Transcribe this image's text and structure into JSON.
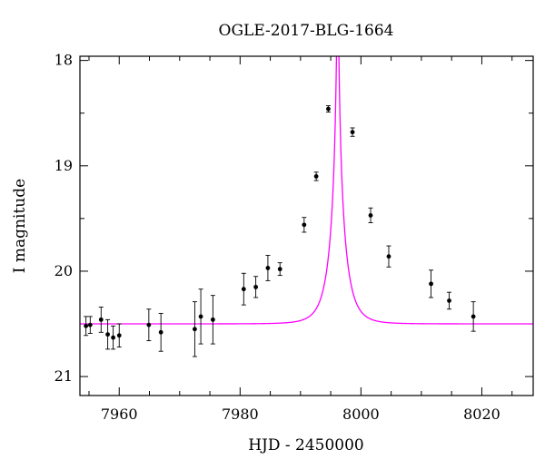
{
  "chart_data": {
    "type": "scatter",
    "title": "OGLE-2017-BLG-1664",
    "xlabel": "HJD - 2450000",
    "ylabel": "I magnitude",
    "xlim": [
      7953.5,
      8028.5
    ],
    "ylim": [
      21.18,
      17.96
    ],
    "y_inverted": true,
    "x_ticks": [
      7960,
      7980,
      8000,
      8020
    ],
    "x_tick_labels": [
      "7960",
      "7980",
      "8000",
      "8020"
    ],
    "y_ticks": [
      18,
      19,
      20,
      21
    ],
    "y_tick_labels": [
      "18",
      "19",
      "20",
      "21"
    ],
    "grid": false,
    "colors": {
      "points": "#000000",
      "model": "#ff00ff",
      "frame": "#000000"
    },
    "series": [
      {
        "kind": "points_with_errorbars",
        "x": [
          7954.5,
          7955.2,
          7957.0,
          7958.1,
          7959.0,
          7960.0,
          7964.9,
          7966.9,
          7972.5,
          7973.5,
          7975.5,
          7980.6,
          7982.6,
          7984.6,
          7986.6,
          7990.6,
          7992.6,
          7994.6,
          7998.6,
          8001.6,
          8004.6,
          8011.6,
          8014.6,
          8018.6
        ],
        "y": [
          20.52,
          20.51,
          20.46,
          20.6,
          20.63,
          20.61,
          20.51,
          20.58,
          20.55,
          20.43,
          20.46,
          20.17,
          20.15,
          19.97,
          19.98,
          19.56,
          19.1,
          18.46,
          18.68,
          19.47,
          19.86,
          20.12,
          20.28,
          20.43
        ],
        "yerr": [
          0.09,
          0.08,
          0.12,
          0.14,
          0.11,
          0.11,
          0.15,
          0.18,
          0.26,
          0.26,
          0.23,
          0.15,
          0.1,
          0.12,
          0.06,
          0.07,
          0.04,
          0.03,
          0.04,
          0.07,
          0.1,
          0.13,
          0.08,
          0.14
        ]
      },
      {
        "kind": "model_curve",
        "baseline_mag": 20.5,
        "t0": 7996.15,
        "tE": 2.43,
        "u0": 0.05
      }
    ]
  }
}
